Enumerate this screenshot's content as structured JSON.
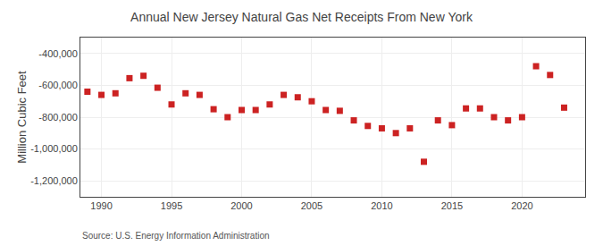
{
  "chart_data": {
    "type": "scatter",
    "title": "Annual New Jersey Natural Gas Net Receipts From New York",
    "ylabel": "Million Cubic Feet",
    "annotations": [
      "Source: U.S. Energy Information Administration"
    ],
    "x": [
      1989,
      1990,
      1991,
      1992,
      1993,
      1994,
      1995,
      1996,
      1997,
      1998,
      1999,
      2000,
      2001,
      2002,
      2003,
      2004,
      2005,
      2006,
      2007,
      2008,
      2009,
      2010,
      2011,
      2012,
      2013,
      2014,
      2015,
      2016,
      2017,
      2018,
      2019,
      2020,
      2021,
      2022,
      2023
    ],
    "values": [
      -640000,
      -660000,
      -650000,
      -555000,
      -540000,
      -615000,
      -720000,
      -650000,
      -660000,
      -750000,
      -800000,
      -755000,
      -755000,
      -720000,
      -660000,
      -675000,
      -700000,
      -755000,
      -760000,
      -820000,
      -855000,
      -870000,
      -900000,
      -870000,
      -1080000,
      -820000,
      -850000,
      -745000,
      -745000,
      -800000,
      -820000,
      -800000,
      -480000,
      -535000,
      -740000
    ],
    "color": "#cc2222",
    "marker": "square",
    "xlim": [
      1988.5,
      2024.5
    ],
    "xticks": [
      1990,
      1995,
      2000,
      2005,
      2010,
      2015,
      2020
    ],
    "ylim": [
      -1300000,
      -300000
    ],
    "yticks": [
      {
        "value": -400000,
        "label": "-400,000"
      },
      {
        "value": -600000,
        "label": "-600,000"
      },
      {
        "value": -800000,
        "label": "-800,000"
      },
      {
        "value": -1000000,
        "label": "-1,000,000"
      },
      {
        "value": -1200000,
        "label": "-1,200,000"
      }
    ],
    "grid": true
  }
}
